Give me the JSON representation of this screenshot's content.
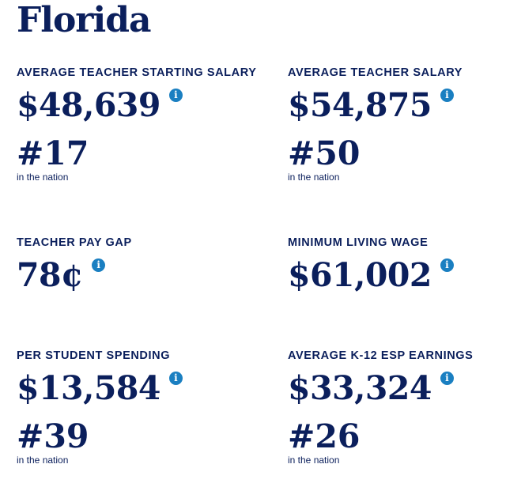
{
  "state_name": "Florida",
  "info_icon_glyph": "i",
  "colors": {
    "primary_text": "#0b1f5c",
    "info_icon": "#1a7fc1"
  },
  "stats": {
    "avg_starting_salary": {
      "label": "AVERAGE TEACHER STARTING SALARY",
      "value": "$48,639",
      "rank": "#17",
      "rank_note": "in the nation",
      "icon": "info-icon"
    },
    "avg_salary": {
      "label": "AVERAGE TEACHER SALARY",
      "value": "$54,875",
      "rank": "#50",
      "rank_note": "in the nation",
      "icon": "info-icon"
    },
    "pay_gap": {
      "label": "TEACHER PAY GAP",
      "value": "78¢",
      "icon": "info-icon"
    },
    "min_living_wage": {
      "label": "MINIMUM LIVING WAGE",
      "value": "$61,002",
      "icon": "info-icon"
    },
    "per_student_spending": {
      "label": "PER STUDENT SPENDING",
      "value": "$13,584",
      "rank": "#39",
      "rank_note": "in the nation",
      "icon": "info-icon"
    },
    "esp_earnings": {
      "label": "AVERAGE K-12 ESP EARNINGS",
      "value": "$33,324",
      "rank": "#26",
      "rank_note": "in the nation",
      "icon": "info-icon"
    }
  }
}
